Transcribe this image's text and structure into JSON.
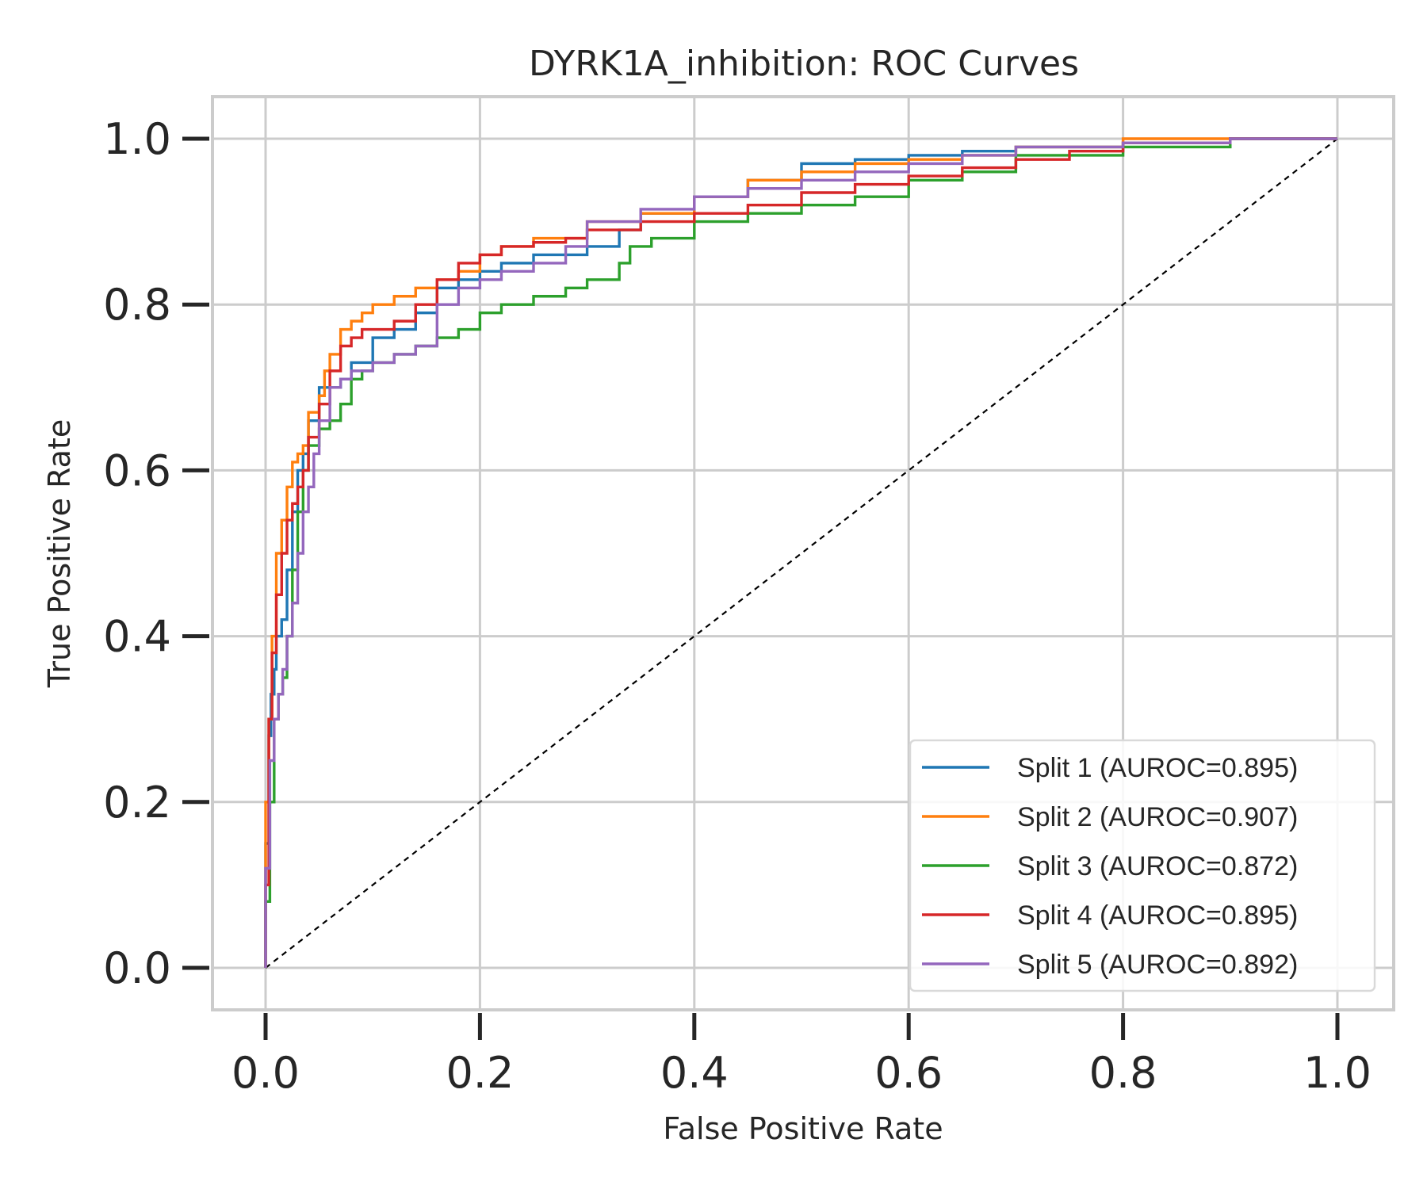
{
  "chart_data": {
    "type": "line",
    "title": "DYRK1A_inhibition: ROC Curves",
    "xlabel": "False Positive Rate",
    "ylabel": "True Positive Rate",
    "xlim": [
      -0.05,
      1.05
    ],
    "ylim": [
      -0.05,
      1.05
    ],
    "xticks": [
      "0.0",
      "0.2",
      "0.4",
      "0.6",
      "0.8",
      "1.0"
    ],
    "yticks": [
      "0.0",
      "0.2",
      "0.4",
      "0.6",
      "0.8",
      "1.0"
    ],
    "grid": true,
    "legend_position": "lower-right",
    "diagonal": {
      "x": [
        0,
        1
      ],
      "y": [
        0,
        1
      ],
      "color": "#000000",
      "style": "dashed"
    },
    "series": [
      {
        "name": "Split 1 (AUROC=0.895)",
        "color": "#1f77b4",
        "x": [
          0,
          0.003,
          0.005,
          0.008,
          0.01,
          0.015,
          0.02,
          0.025,
          0.03,
          0.035,
          0.04,
          0.05,
          0.06,
          0.07,
          0.08,
          0.1,
          0.12,
          0.14,
          0.16,
          0.18,
          0.2,
          0.22,
          0.25,
          0.28,
          0.3,
          0.33,
          0.35,
          0.4,
          0.45,
          0.5,
          0.55,
          0.6,
          0.65,
          0.7,
          0.8,
          0.9,
          1.0
        ],
        "y": [
          0,
          0.15,
          0.28,
          0.33,
          0.36,
          0.4,
          0.42,
          0.48,
          0.55,
          0.6,
          0.62,
          0.66,
          0.7,
          0.7,
          0.71,
          0.73,
          0.76,
          0.77,
          0.79,
          0.82,
          0.83,
          0.84,
          0.85,
          0.86,
          0.86,
          0.87,
          0.89,
          0.91,
          0.93,
          0.95,
          0.97,
          0.975,
          0.98,
          0.985,
          0.99,
          0.995,
          1.0
        ]
      },
      {
        "name": "Split 2 (AUROC=0.907)",
        "color": "#ff7f0e",
        "x": [
          0,
          0.003,
          0.006,
          0.01,
          0.015,
          0.02,
          0.025,
          0.03,
          0.035,
          0.04,
          0.05,
          0.055,
          0.06,
          0.07,
          0.08,
          0.09,
          0.1,
          0.12,
          0.14,
          0.16,
          0.18,
          0.2,
          0.22,
          0.25,
          0.28,
          0.3,
          0.35,
          0.4,
          0.45,
          0.5,
          0.55,
          0.6,
          0.65,
          0.7,
          0.8,
          0.9,
          1.0
        ],
        "y": [
          0,
          0.2,
          0.3,
          0.4,
          0.5,
          0.54,
          0.58,
          0.61,
          0.62,
          0.63,
          0.67,
          0.69,
          0.72,
          0.74,
          0.77,
          0.78,
          0.79,
          0.8,
          0.81,
          0.82,
          0.83,
          0.84,
          0.86,
          0.87,
          0.88,
          0.88,
          0.9,
          0.91,
          0.93,
          0.95,
          0.96,
          0.97,
          0.975,
          0.98,
          0.99,
          1.0,
          1.0
        ]
      },
      {
        "name": "Split 3 (AUROC=0.872)",
        "color": "#2ca02c",
        "x": [
          0,
          0.004,
          0.008,
          0.012,
          0.016,
          0.02,
          0.025,
          0.03,
          0.035,
          0.04,
          0.05,
          0.06,
          0.07,
          0.08,
          0.09,
          0.1,
          0.12,
          0.14,
          0.16,
          0.18,
          0.2,
          0.22,
          0.25,
          0.28,
          0.3,
          0.33,
          0.34,
          0.36,
          0.4,
          0.45,
          0.5,
          0.55,
          0.6,
          0.65,
          0.7,
          0.8,
          0.9,
          1.0
        ],
        "y": [
          0,
          0.08,
          0.2,
          0.3,
          0.33,
          0.35,
          0.4,
          0.48,
          0.55,
          0.6,
          0.63,
          0.65,
          0.66,
          0.68,
          0.71,
          0.72,
          0.73,
          0.74,
          0.75,
          0.76,
          0.77,
          0.79,
          0.8,
          0.81,
          0.82,
          0.83,
          0.85,
          0.87,
          0.88,
          0.9,
          0.91,
          0.92,
          0.93,
          0.95,
          0.96,
          0.98,
          0.99,
          1.0
        ]
      },
      {
        "name": "Split 4 (AUROC=0.895)",
        "color": "#d62728",
        "x": [
          0,
          0.003,
          0.006,
          0.01,
          0.015,
          0.02,
          0.025,
          0.03,
          0.035,
          0.04,
          0.05,
          0.06,
          0.07,
          0.08,
          0.09,
          0.1,
          0.12,
          0.14,
          0.16,
          0.18,
          0.2,
          0.22,
          0.25,
          0.28,
          0.3,
          0.35,
          0.4,
          0.45,
          0.5,
          0.55,
          0.6,
          0.65,
          0.7,
          0.75,
          0.8,
          0.9,
          1.0
        ],
        "y": [
          0,
          0.1,
          0.3,
          0.38,
          0.45,
          0.5,
          0.54,
          0.56,
          0.58,
          0.6,
          0.64,
          0.68,
          0.72,
          0.75,
          0.76,
          0.77,
          0.77,
          0.78,
          0.8,
          0.83,
          0.85,
          0.86,
          0.87,
          0.875,
          0.88,
          0.89,
          0.9,
          0.91,
          0.92,
          0.935,
          0.945,
          0.955,
          0.965,
          0.975,
          0.985,
          0.995,
          1.0
        ]
      },
      {
        "name": "Split 5 (AUROC=0.892)",
        "color": "#9467bd",
        "x": [
          0,
          0.004,
          0.008,
          0.012,
          0.016,
          0.02,
          0.025,
          0.03,
          0.035,
          0.04,
          0.045,
          0.05,
          0.06,
          0.07,
          0.08,
          0.1,
          0.12,
          0.14,
          0.16,
          0.18,
          0.2,
          0.22,
          0.25,
          0.28,
          0.3,
          0.35,
          0.4,
          0.45,
          0.5,
          0.55,
          0.6,
          0.65,
          0.7,
          0.8,
          0.9,
          1.0
        ],
        "y": [
          0,
          0.12,
          0.25,
          0.3,
          0.33,
          0.36,
          0.4,
          0.44,
          0.5,
          0.55,
          0.58,
          0.62,
          0.66,
          0.7,
          0.71,
          0.72,
          0.73,
          0.74,
          0.75,
          0.8,
          0.82,
          0.83,
          0.84,
          0.85,
          0.87,
          0.9,
          0.915,
          0.93,
          0.94,
          0.95,
          0.96,
          0.97,
          0.98,
          0.99,
          0.995,
          1.0
        ]
      }
    ]
  }
}
